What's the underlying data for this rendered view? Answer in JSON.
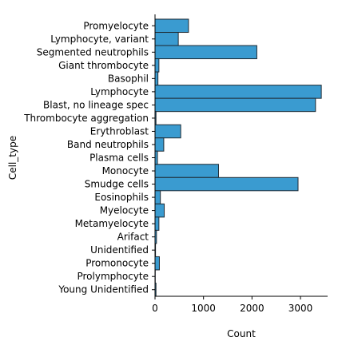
{
  "colors": {
    "bar_fill": "#3a9bd0",
    "bar_edge": "#1f2a33",
    "axis": "#000000"
  },
  "chart_data": {
    "type": "bar",
    "orientation": "horizontal",
    "title": "",
    "xlabel": "Count",
    "ylabel": "Cell_type",
    "xlim": [
      0,
      3560
    ],
    "xticks": [
      0,
      1000,
      2000,
      3000
    ],
    "grid": false,
    "categories": [
      "Promyelocyte",
      "Lymphocyte, variant",
      "Segmented neutrophils",
      "Giant thrombocyte",
      "Basophil",
      "Lymphocyte",
      "Blast, no lineage spec",
      "Thrombocyte aggregation",
      "Erythroblast",
      "Band neutrophils",
      "Plasma cells",
      "Monocyte",
      "Smudge cells",
      "Eosinophils",
      "Myelocyte",
      "Metamyelocyte",
      "Arifact",
      "Unidentified",
      "Promonocyte",
      "Prolymphocyte",
      "Young Unidentified"
    ],
    "values": [
      690,
      480,
      2100,
      80,
      60,
      3430,
      3310,
      20,
      530,
      180,
      50,
      1310,
      2950,
      110,
      190,
      80,
      30,
      10,
      90,
      5,
      20
    ]
  }
}
